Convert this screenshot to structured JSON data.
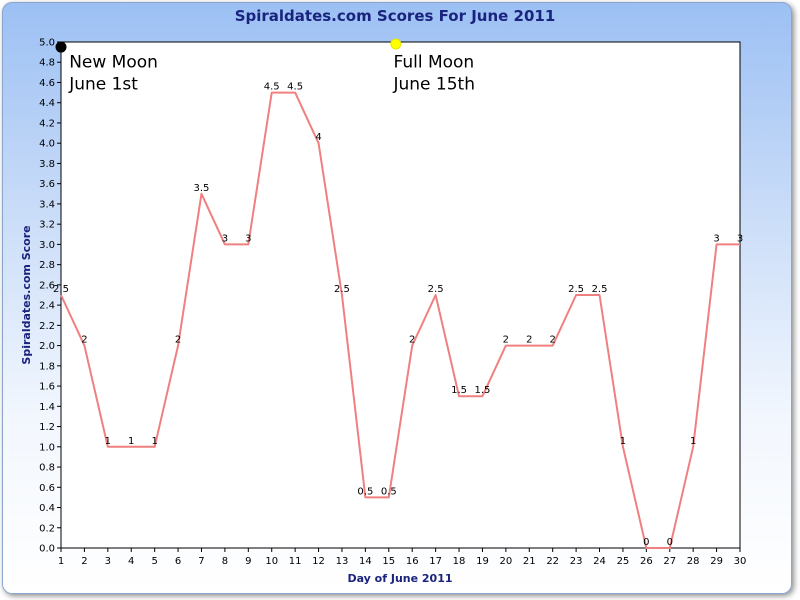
{
  "chart_data": {
    "type": "line",
    "title": "Spiraldates.com Scores For June 2011",
    "xlabel": "Day of June 2011",
    "ylabel": "Spiraldates.com Score",
    "x": [
      1,
      2,
      3,
      4,
      5,
      6,
      7,
      8,
      9,
      10,
      11,
      12,
      13,
      14,
      15,
      16,
      17,
      18,
      19,
      20,
      21,
      22,
      23,
      24,
      25,
      26,
      27,
      28,
      29,
      30
    ],
    "xlim": [
      1,
      30
    ],
    "ylim": [
      0,
      5
    ],
    "ytick_step": 0.2,
    "grid": false,
    "series": [
      {
        "color": "#f08080",
        "values": [
          2.5,
          2,
          1,
          1,
          1,
          2,
          3.5,
          3,
          3,
          4.5,
          4.5,
          4,
          2.5,
          0.5,
          0.5,
          2,
          2.5,
          1.5,
          1.5,
          2,
          2,
          2,
          2.5,
          2.5,
          1,
          0,
          0,
          1,
          3,
          3
        ]
      }
    ],
    "markers": [
      {
        "x": 1,
        "y": 4.95,
        "color": "#000000"
      },
      {
        "x": 15.3,
        "y": 4.98,
        "color": "#ffff00"
      }
    ],
    "annotations": [
      {
        "line1": "New Moon",
        "line2": "June 1st",
        "x": 1.35,
        "y": 4.75
      },
      {
        "line1": "Full Moon",
        "line2": "June 15th",
        "x": 15.2,
        "y": 4.75
      }
    ]
  }
}
